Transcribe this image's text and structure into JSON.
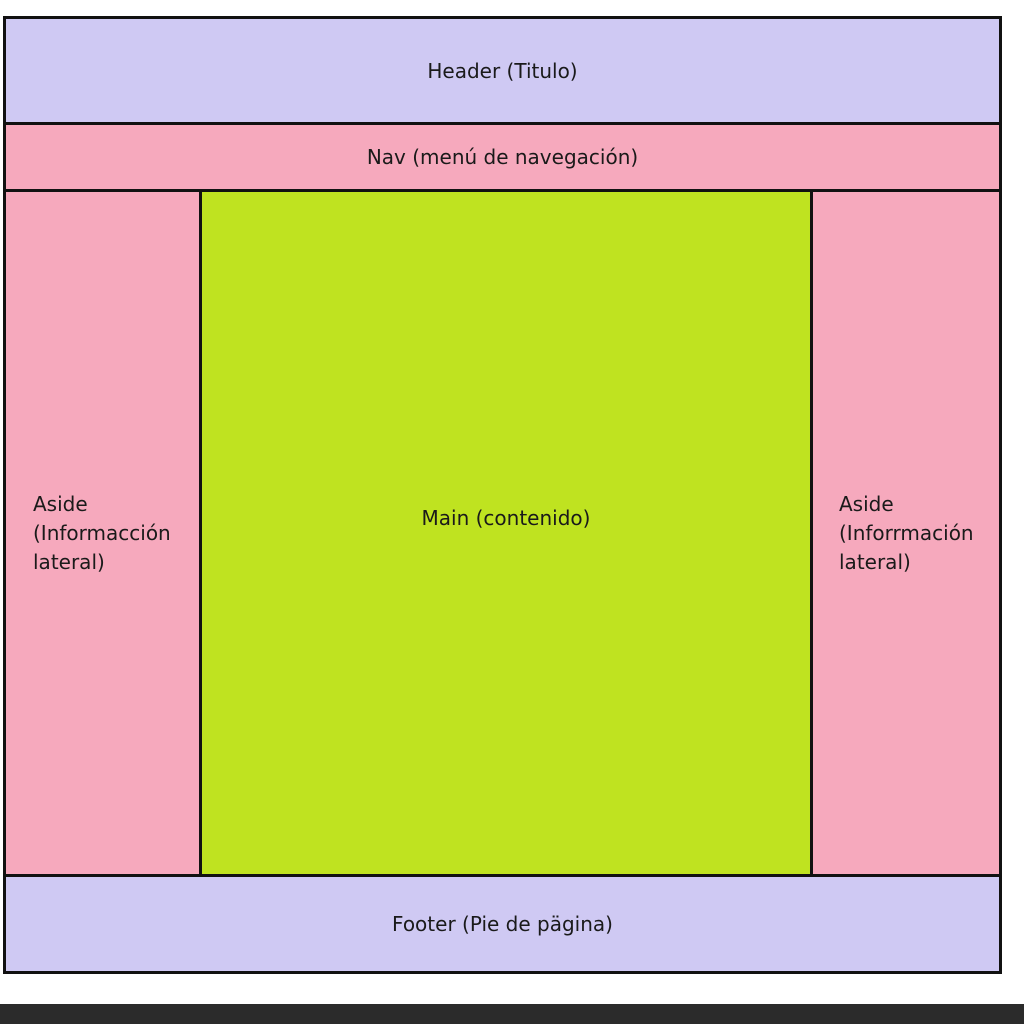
{
  "colors": {
    "header_footer": "#cfc9f3",
    "nav_aside": "#f6a9bd",
    "main": "#bfe320",
    "border": "#111111"
  },
  "header": {
    "label": "Header (Titulo)"
  },
  "nav": {
    "label": "Nav (menú de navegación)"
  },
  "aside_left": {
    "label": "Aside\n(Informacción\nlateral)"
  },
  "main": {
    "label": "Main (contenido)"
  },
  "aside_right": {
    "label": "Aside\n(Inforrmación\nlateral)"
  },
  "footer": {
    "label": "Footer (Pie de pägina)"
  }
}
